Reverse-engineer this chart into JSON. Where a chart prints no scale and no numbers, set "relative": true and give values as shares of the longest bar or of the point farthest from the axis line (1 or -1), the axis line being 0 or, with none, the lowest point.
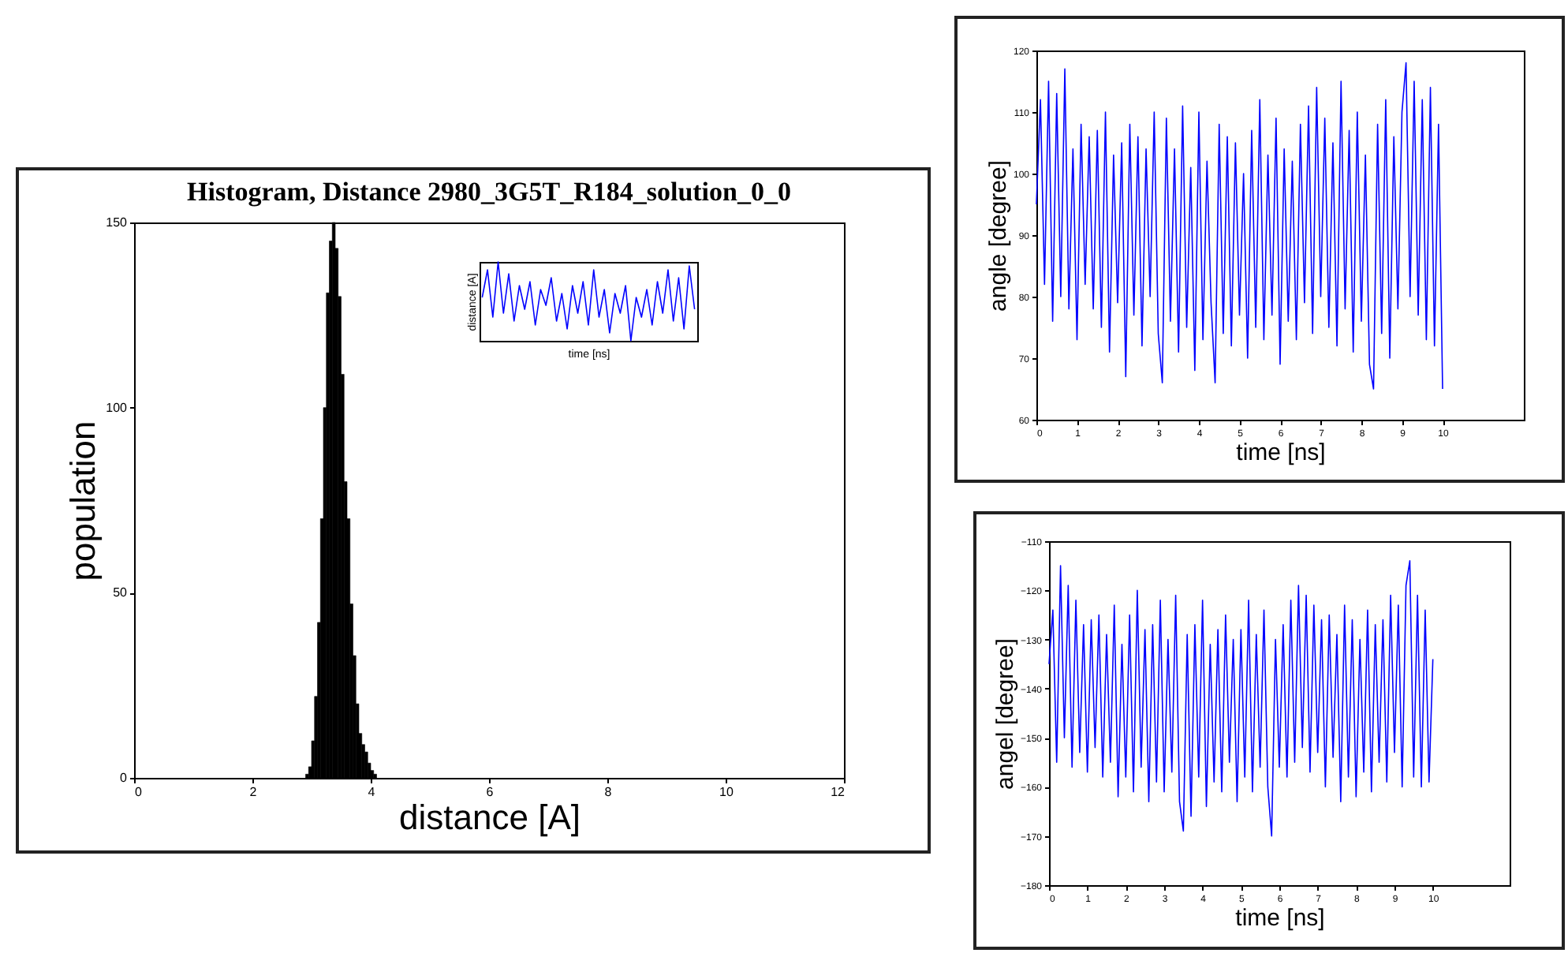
{
  "chart_data": [
    {
      "type": "histogram",
      "title": "Histogram, Distance 2980_3G5T_R184_solution_0_0",
      "xlabel": "distance [A]",
      "ylabel": "population",
      "color": "#000000",
      "bins": [
        2.9,
        2.95,
        3.0,
        3.05,
        3.1,
        3.15,
        3.2,
        3.25,
        3.3,
        3.35,
        3.4,
        3.45,
        3.5,
        3.55,
        3.6,
        3.65,
        3.7,
        3.75,
        3.8,
        3.85,
        3.9,
        3.95,
        4.0,
        4.05,
        4.1
      ],
      "values": [
        1,
        3,
        10,
        22,
        42,
        70,
        100,
        131,
        145,
        150,
        143,
        130,
        109,
        80,
        70,
        47,
        33,
        20,
        12,
        9,
        7,
        4,
        2,
        1
      ],
      "xlim": [
        0,
        12
      ],
      "xticks": [
        0,
        2,
        4,
        6,
        8,
        10,
        12
      ],
      "ylim": [
        0,
        150
      ],
      "yticks": [
        0,
        50,
        100,
        150
      ]
    },
    {
      "type": "line",
      "xlabel": "time [ns]",
      "ylabel": "distance [A]",
      "relative": true,
      "color": "#0000ff",
      "categories": [
        null,
        null,
        null,
        null,
        null,
        null,
        null,
        null,
        null,
        null,
        null,
        null,
        null,
        null,
        null,
        null,
        null,
        null,
        null,
        null,
        null,
        null,
        null,
        null,
        null,
        null,
        null,
        null,
        null,
        null,
        null,
        null,
        null,
        null,
        null,
        null,
        null,
        null,
        null,
        null,
        null
      ],
      "values": [
        0.55,
        0.9,
        0.3,
        1,
        0.35,
        0.85,
        0.25,
        0.7,
        0.4,
        0.75,
        0.2,
        0.65,
        0.45,
        0.8,
        0.25,
        0.6,
        0.15,
        0.7,
        0.35,
        0.75,
        0.2,
        0.9,
        0.3,
        0.65,
        0.1,
        0.6,
        0.35,
        0.7,
        0.0,
        0.55,
        0.3,
        0.65,
        0.2,
        0.75,
        0.35,
        0.9,
        0.25,
        0.8,
        0.15,
        0.95,
        0.4
      ]
    },
    {
      "type": "line",
      "xlabel": "time [ns]",
      "ylabel": "angle [degree]",
      "color": "#0000ff",
      "x": [
        0,
        0.1,
        0.2,
        0.3,
        0.4,
        0.5,
        0.6,
        0.7,
        0.8,
        0.9,
        1,
        1.1,
        1.2,
        1.3,
        1.4,
        1.5,
        1.6,
        1.7,
        1.8,
        1.9,
        2,
        2.1,
        2.2,
        2.3,
        2.4,
        2.5,
        2.6,
        2.7,
        2.8,
        2.9,
        3,
        3.1,
        3.2,
        3.3,
        3.4,
        3.5,
        3.6,
        3.7,
        3.8,
        3.9,
        4,
        4.1,
        4.2,
        4.3,
        4.4,
        4.5,
        4.6,
        4.7,
        4.8,
        4.9,
        5,
        5.1,
        5.2,
        5.3,
        5.4,
        5.5,
        5.6,
        5.7,
        5.8,
        5.9,
        6,
        6.1,
        6.2,
        6.3,
        6.4,
        6.5,
        6.6,
        6.7,
        6.8,
        6.9,
        7,
        7.1,
        7.2,
        7.3,
        7.4,
        7.5,
        7.6,
        7.7,
        7.8,
        7.9,
        8,
        8.1,
        8.2,
        8.3,
        8.4,
        8.5,
        8.6,
        8.7,
        8.8,
        8.9,
        9,
        9.1,
        9.2,
        9.3,
        9.4,
        9.5,
        9.6,
        9.7,
        9.8,
        9.9,
        10
      ],
      "values": [
        95,
        112,
        82,
        115,
        76,
        113,
        80,
        117,
        78,
        104,
        73,
        108,
        82,
        106,
        78,
        107,
        75,
        110,
        71,
        103,
        79,
        105,
        67,
        108,
        77,
        106,
        72,
        104,
        80,
        110,
        74,
        66,
        109,
        76,
        104,
        71,
        111,
        75,
        101,
        68,
        110,
        73,
        102,
        79,
        66,
        108,
        74,
        106,
        72,
        105,
        77,
        100,
        70,
        107,
        75,
        112,
        73,
        103,
        77,
        109,
        69,
        104,
        76,
        102,
        73,
        108,
        79,
        111,
        74,
        114,
        80,
        109,
        75,
        105,
        72,
        115,
        78,
        107,
        71,
        110,
        76,
        103,
        69,
        65,
        108,
        74,
        112,
        70,
        106,
        78,
        110,
        118,
        80,
        115,
        77,
        112,
        73,
        114,
        72,
        108,
        65
      ],
      "xlim": [
        0,
        12
      ],
      "xticks": [
        0,
        1,
        2,
        3,
        4,
        5,
        6,
        7,
        8,
        9,
        10
      ],
      "ylim": [
        60,
        120
      ],
      "yticks": [
        60,
        70,
        80,
        90,
        100,
        110,
        120
      ]
    },
    {
      "type": "line",
      "xlabel": "time [ns]",
      "ylabel": "angel [degree]",
      "color": "#0000ff",
      "x": [
        0,
        0.1,
        0.2,
        0.3,
        0.4,
        0.5,
        0.6,
        0.7,
        0.8,
        0.9,
        1,
        1.1,
        1.2,
        1.3,
        1.4,
        1.5,
        1.6,
        1.7,
        1.8,
        1.9,
        2,
        2.1,
        2.2,
        2.3,
        2.4,
        2.5,
        2.6,
        2.7,
        2.8,
        2.9,
        3,
        3.1,
        3.2,
        3.3,
        3.4,
        3.5,
        3.6,
        3.7,
        3.8,
        3.9,
        4,
        4.1,
        4.2,
        4.3,
        4.4,
        4.5,
        4.6,
        4.7,
        4.8,
        4.9,
        5,
        5.1,
        5.2,
        5.3,
        5.4,
        5.5,
        5.6,
        5.7,
        5.8,
        5.9,
        6,
        6.1,
        6.2,
        6.3,
        6.4,
        6.5,
        6.6,
        6.7,
        6.8,
        6.9,
        7,
        7.1,
        7.2,
        7.3,
        7.4,
        7.5,
        7.6,
        7.7,
        7.8,
        7.9,
        8,
        8.1,
        8.2,
        8.3,
        8.4,
        8.5,
        8.6,
        8.7,
        8.8,
        8.9,
        9,
        9.1,
        9.2,
        9.3,
        9.4,
        9.5,
        9.6,
        9.7,
        9.8,
        9.9,
        10
      ],
      "values": [
        -135,
        -124,
        -155,
        -115,
        -150,
        -119,
        -156,
        -122,
        -153,
        -127,
        -157,
        -126,
        -152,
        -125,
        -158,
        -129,
        -155,
        -123,
        -162,
        -131,
        -158,
        -125,
        -161,
        -120,
        -156,
        -128,
        -163,
        -127,
        -159,
        -122,
        -161,
        -130,
        -157,
        -121,
        -163,
        -169,
        -129,
        -166,
        -127,
        -158,
        -122,
        -164,
        -131,
        -159,
        -128,
        -161,
        -125,
        -155,
        -130,
        -163,
        -128,
        -158,
        -122,
        -161,
        -129,
        -156,
        -124,
        -160,
        -170,
        -130,
        -156,
        -127,
        -158,
        -122,
        -155,
        -119,
        -152,
        -121,
        -157,
        -123,
        -153,
        -126,
        -160,
        -125,
        -154,
        -129,
        -163,
        -123,
        -158,
        -126,
        -162,
        -130,
        -157,
        -124,
        -161,
        -127,
        -155,
        -126,
        -159,
        -121,
        -153,
        -123,
        -160,
        -119,
        -114,
        -158,
        -121,
        -160,
        -124,
        -159,
        -134
      ],
      "xlim": [
        0,
        12
      ],
      "xticks": [
        0,
        1,
        2,
        3,
        4,
        5,
        6,
        7,
        8,
        9,
        10
      ],
      "ylim": [
        -180,
        -110
      ],
      "yticks": [
        -180,
        -170,
        -160,
        -150,
        -140,
        -130,
        -120,
        -110
      ]
    }
  ]
}
